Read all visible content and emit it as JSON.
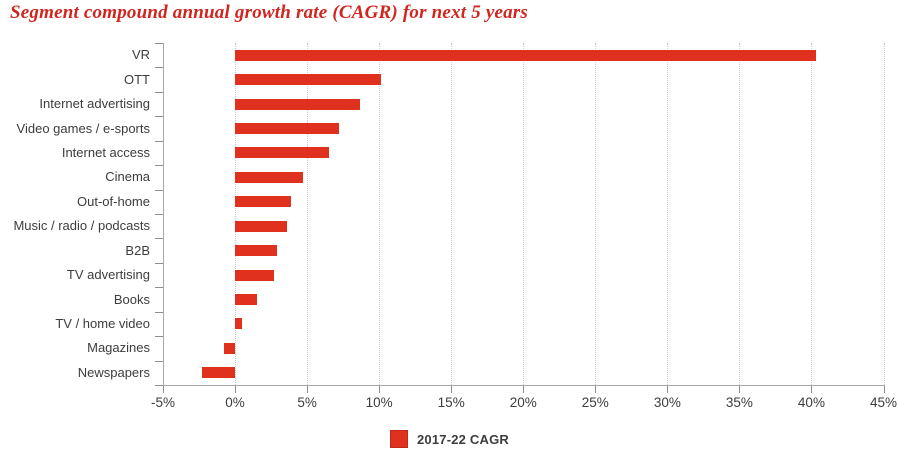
{
  "title": "Segment compound annual growth rate (CAGR) for next 5 years",
  "colors": {
    "bar": "#e0301e",
    "bar_border": "#c3271a",
    "title": "#d1251f",
    "axis": "#a8a8a8",
    "tick": "#8f8f8f",
    "grid": "#c9c9c9",
    "text": "#3d3d3d",
    "background": "#ffffff"
  },
  "legend": {
    "label": "2017-22 CAGR",
    "position": "bottom"
  },
  "chart_data": {
    "type": "bar",
    "orientation": "horizontal",
    "title": "Segment compound annual growth rate (CAGR) for next 5 years",
    "unit": "percent",
    "categories": [
      "VR",
      "OTT",
      "Internet advertising",
      "Video games / e-sports",
      "Internet access",
      "Cinema",
      "Out-of-home",
      "Music / radio / podcasts",
      "B2B",
      "TV advertising",
      "Books",
      "TV / home video",
      "Magazines",
      "Newspapers"
    ],
    "values": [
      40.3,
      10.1,
      8.7,
      7.2,
      6.5,
      4.7,
      3.9,
      3.6,
      2.9,
      2.7,
      1.5,
      0.5,
      -0.8,
      -2.3
    ],
    "series_name": "2017-22 CAGR",
    "xlim": [
      -5,
      45
    ],
    "xtick_step": 5,
    "xticks": [
      "-5%",
      "0%",
      "5%",
      "10%",
      "15%",
      "20%",
      "25%",
      "30%",
      "35%",
      "40%",
      "45%"
    ],
    "grid": "vertical-dotted",
    "legend_position": "bottom",
    "baseline": 0
  }
}
